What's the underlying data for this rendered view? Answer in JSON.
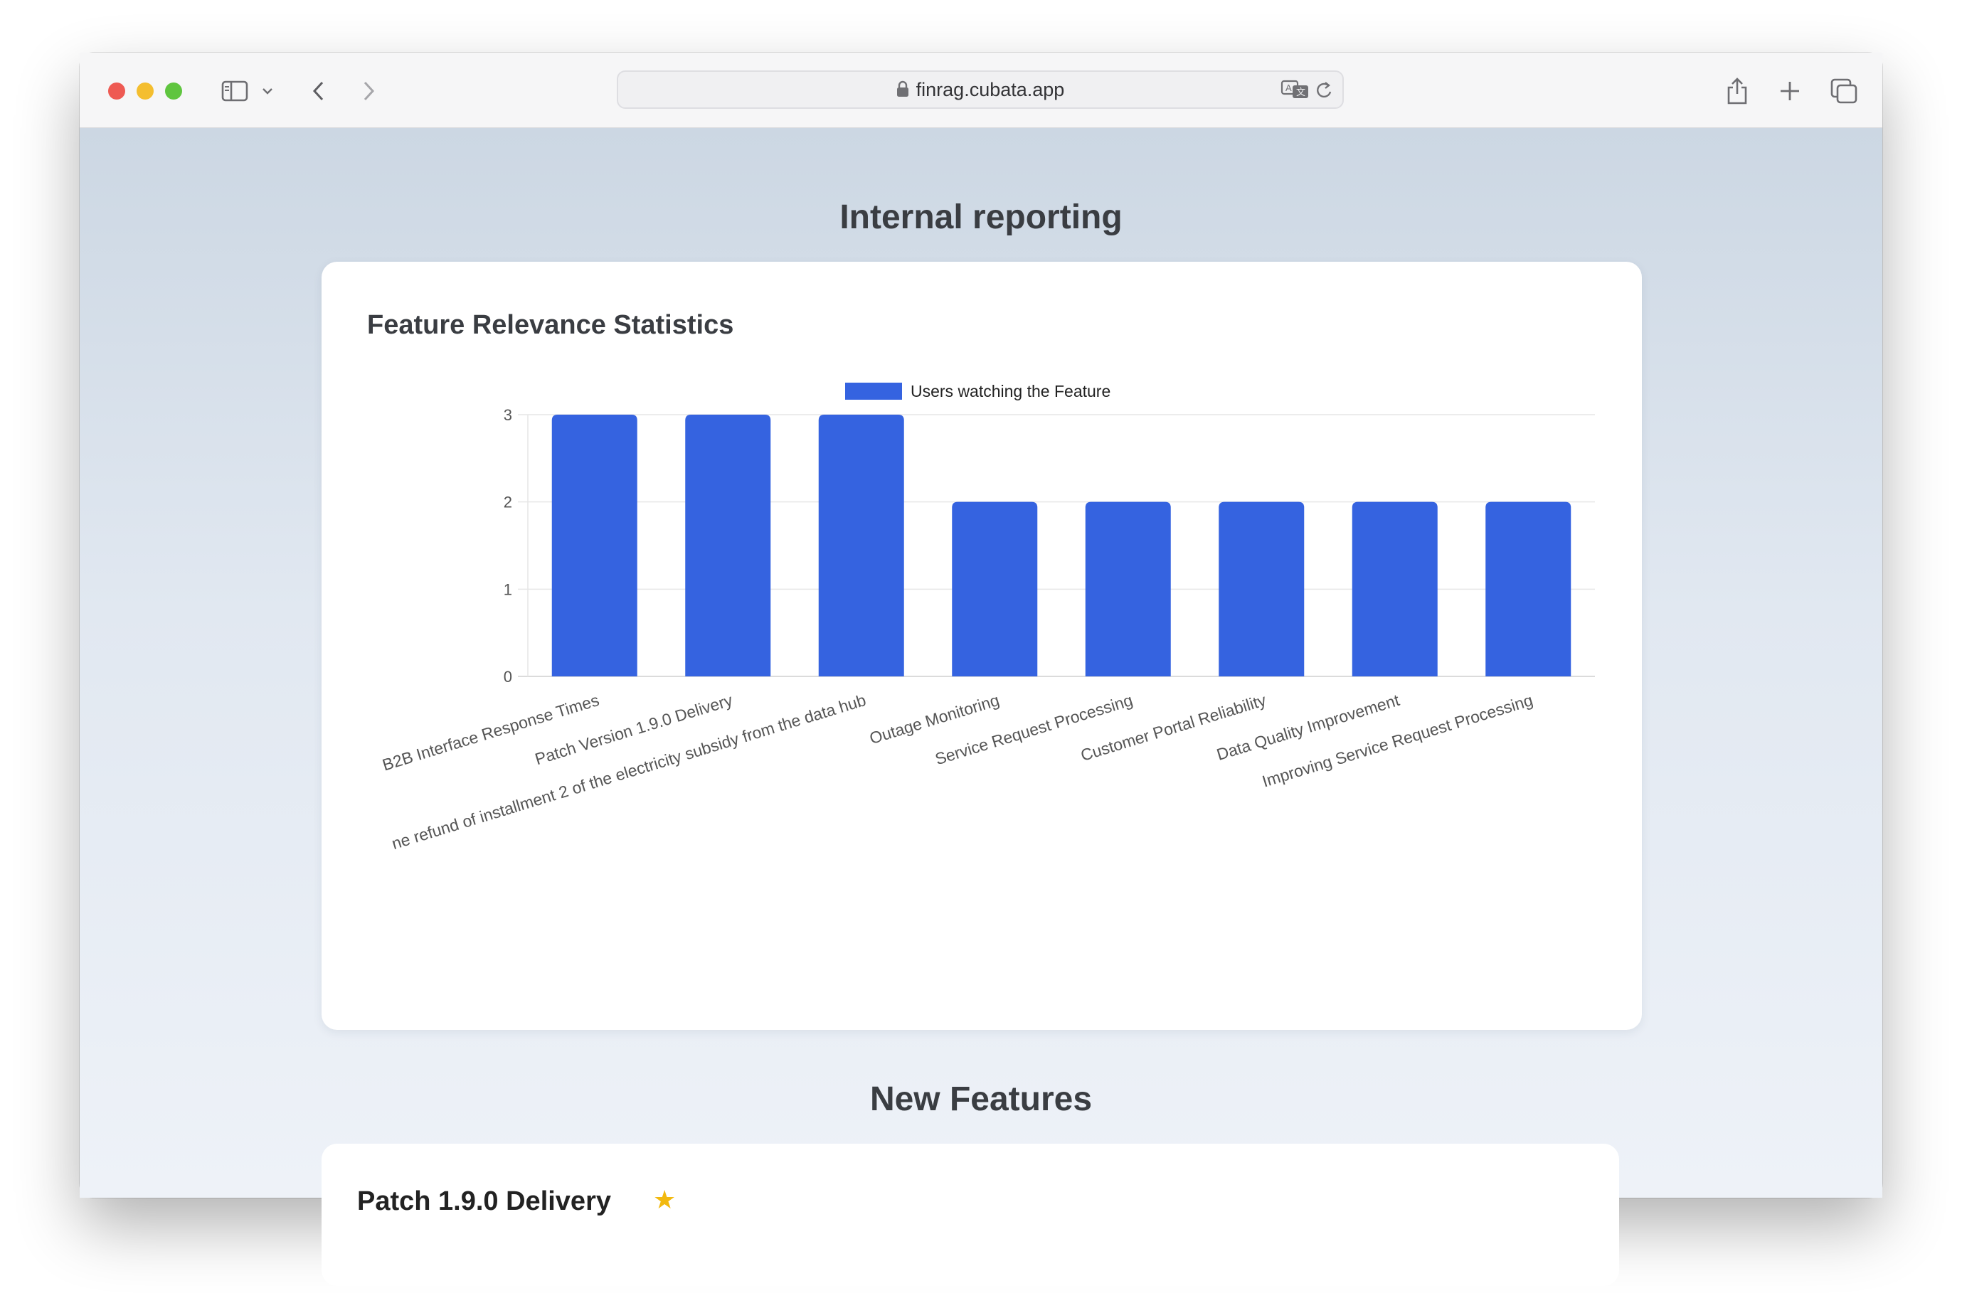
{
  "browser": {
    "url": "finrag.cubata.app"
  },
  "page": {
    "title": "Internal reporting",
    "chart_card_title": "Feature Relevance Statistics",
    "new_features_title": "New Features",
    "first_feature_title": "Patch 1.9.0 Delivery",
    "first_feature_icon": "star-icon"
  },
  "colors": {
    "bar": "#3563e0",
    "accent_star": "#f2b90f"
  },
  "chart_data": {
    "type": "bar",
    "categories": [
      "B2B Interface Response Times",
      "Patch Version 1.9.0 Delivery",
      "ne refund of installment 2 of the electricity subsidy from the data hub",
      "Outage Monitoring",
      "Service Request Processing",
      "Customer Portal Reliability",
      "Data Quality Improvement",
      "Improving Service Request Processing"
    ],
    "series": [
      {
        "name": "Users watching the Feature",
        "values": [
          3,
          3,
          3,
          2,
          2,
          2,
          2,
          2
        ]
      }
    ],
    "yticks": [
      "0",
      "1",
      "2",
      "3"
    ],
    "ylim": [
      0,
      3
    ],
    "legend": "top-center",
    "grid": true,
    "title": "",
    "xlabel": "",
    "ylabel": ""
  }
}
